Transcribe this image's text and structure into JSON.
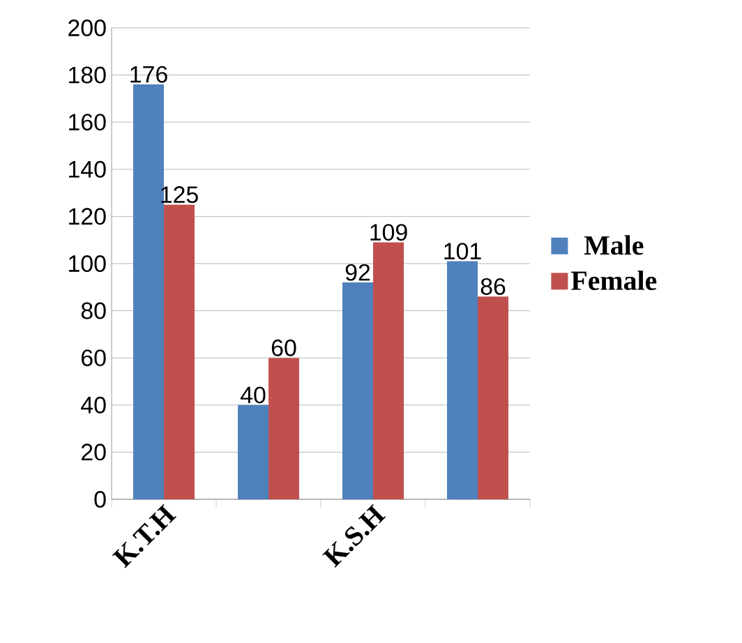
{
  "chart_data": {
    "type": "bar",
    "categories": [
      "K.T.H",
      null,
      "K.S.H",
      null
    ],
    "series": [
      {
        "name": "Male",
        "color": "#4f81bd",
        "values": [
          176,
          40,
          92,
          101
        ]
      },
      {
        "name": "Female",
        "color": "#c0504d",
        "values": [
          125,
          60,
          109,
          86
        ]
      }
    ],
    "ylim": [
      0,
      200
    ],
    "yticks": [
      0,
      20,
      40,
      60,
      80,
      100,
      120,
      140,
      160,
      180,
      200
    ],
    "grid": "y",
    "legend": "right",
    "data_labels": true
  }
}
